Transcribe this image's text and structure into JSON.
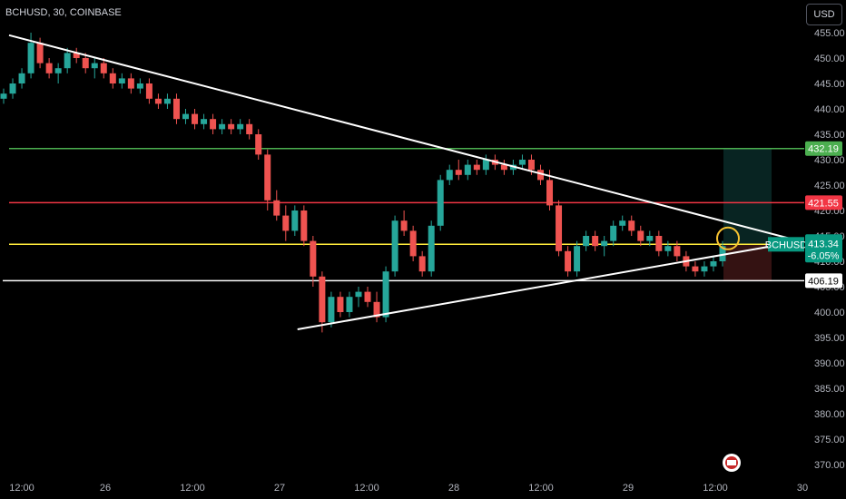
{
  "header": {
    "symbol_label": "BCHUSD, 30, COINBASE",
    "currency_button": "USD"
  },
  "colors": {
    "background": "#000000",
    "up": "#26a69a",
    "down": "#ef5350",
    "green_level": "#4caf50",
    "red_level": "#f23645",
    "yellow_level": "#ffeb3b",
    "trendline": "#ffffff",
    "highlight": "#f7c331"
  },
  "chart_data": {
    "type": "candlestick",
    "title": "BCHUSD, 30, COINBASE",
    "ylim": [
      368,
      457
    ],
    "x_ticks": [
      "12:00",
      "26",
      "12:00",
      "27",
      "12:00",
      "28",
      "12:00",
      "29",
      "12:00",
      "30"
    ],
    "y_ticks": [
      455,
      450,
      445,
      440,
      435,
      430,
      425,
      420,
      415,
      410,
      405,
      400,
      395,
      390,
      385,
      380,
      375,
      370
    ],
    "horizontal_levels": [
      {
        "value": 432.19,
        "label": "432.19",
        "color": "#4caf50"
      },
      {
        "value": 421.55,
        "label": "421.55",
        "color": "#f23645"
      },
      {
        "value": 413.34,
        "label": "413.34",
        "color": "#ffeb3b"
      },
      {
        "value": 406.19,
        "label": "406.19",
        "color": "#ffffff"
      }
    ],
    "last_price": {
      "symbol": "BCHUSD",
      "value": "413.34",
      "change": "-6.05%"
    },
    "trendlines": [
      {
        "from": [
          0.0,
          454.5
        ],
        "to": [
          95.0,
          413.8
        ]
      },
      {
        "from": [
          34.5,
          396.6
        ],
        "to": [
          92.0,
          413.2
        ]
      }
    ],
    "position": {
      "entry": 413.34,
      "target": 432.19,
      "stop": 406.19
    },
    "candles_ohlc": [
      [
        442,
        444,
        441,
        443
      ],
      [
        443,
        446,
        442,
        445
      ],
      [
        445,
        448,
        444,
        447
      ],
      [
        447,
        455,
        446,
        453
      ],
      [
        453,
        454,
        448,
        449
      ],
      [
        449,
        450,
        446,
        447
      ],
      [
        447,
        449,
        445,
        448
      ],
      [
        448,
        452,
        447,
        451
      ],
      [
        451,
        452,
        449,
        450
      ],
      [
        450,
        451,
        447,
        448
      ],
      [
        448,
        450,
        446,
        449
      ],
      [
        449,
        450,
        446,
        447
      ],
      [
        447,
        448,
        444,
        445
      ],
      [
        445,
        447,
        444,
        446
      ],
      [
        446,
        447,
        443,
        444
      ],
      [
        444,
        446,
        443,
        445
      ],
      [
        445,
        446,
        441,
        442
      ],
      [
        442,
        443,
        440,
        441
      ],
      [
        441,
        443,
        440,
        442
      ],
      [
        442,
        443,
        437,
        438
      ],
      [
        438,
        440,
        437,
        439
      ],
      [
        439,
        440,
        436,
        437
      ],
      [
        437,
        439,
        436,
        438
      ],
      [
        438,
        439,
        435,
        436
      ],
      [
        436,
        438,
        435,
        437
      ],
      [
        437,
        438,
        435,
        436
      ],
      [
        436,
        438,
        435,
        437
      ],
      [
        437,
        438,
        434,
        435
      ],
      [
        435,
        436,
        430,
        431
      ],
      [
        431,
        432,
        420,
        422
      ],
      [
        422,
        424,
        418,
        419
      ],
      [
        419,
        421,
        414,
        416
      ],
      [
        416,
        421,
        415,
        420
      ],
      [
        420,
        421,
        413,
        414
      ],
      [
        414,
        415,
        405,
        407
      ],
      [
        407,
        408,
        396,
        398
      ],
      [
        398,
        404,
        397,
        403
      ],
      [
        403,
        404,
        399,
        400
      ],
      [
        400,
        404,
        399,
        403
      ],
      [
        403,
        405,
        401,
        404
      ],
      [
        404,
        405,
        401,
        402
      ],
      [
        402,
        404,
        398,
        399
      ],
      [
        399,
        409,
        398,
        408
      ],
      [
        408,
        419,
        407,
        418
      ],
      [
        418,
        420,
        415,
        416
      ],
      [
        416,
        417,
        410,
        411
      ],
      [
        411,
        412,
        407,
        408
      ],
      [
        408,
        418,
        407,
        417
      ],
      [
        417,
        427,
        416,
        426
      ],
      [
        426,
        429,
        425,
        428
      ],
      [
        428,
        430,
        426,
        427
      ],
      [
        427,
        430,
        426,
        429
      ],
      [
        429,
        430,
        427,
        428
      ],
      [
        428,
        431,
        427,
        430
      ],
      [
        430,
        431,
        428,
        429
      ],
      [
        429,
        430,
        427,
        428
      ],
      [
        428,
        430,
        427,
        429
      ],
      [
        429,
        431,
        428,
        430
      ],
      [
        430,
        431,
        427,
        428
      ],
      [
        428,
        429,
        425,
        426
      ],
      [
        426,
        428,
        420,
        421
      ],
      [
        421,
        422,
        411,
        412
      ],
      [
        412,
        413,
        407,
        408
      ],
      [
        408,
        414,
        407,
        413
      ],
      [
        413,
        416,
        412,
        415
      ],
      [
        415,
        416,
        412,
        413
      ],
      [
        413,
        415,
        411,
        414
      ],
      [
        414,
        418,
        413,
        417
      ],
      [
        417,
        419,
        416,
        418
      ],
      [
        418,
        419,
        415,
        416
      ],
      [
        416,
        417,
        413,
        414
      ],
      [
        414,
        416,
        413,
        415
      ],
      [
        415,
        416,
        411,
        412
      ],
      [
        412,
        414,
        411,
        413
      ],
      [
        413,
        414,
        410,
        411
      ],
      [
        411,
        412,
        408,
        409
      ],
      [
        409,
        410,
        407,
        408
      ],
      [
        408,
        410,
        407,
        409
      ],
      [
        409,
        411,
        408,
        410
      ],
      [
        410,
        414,
        409,
        413
      ]
    ]
  }
}
